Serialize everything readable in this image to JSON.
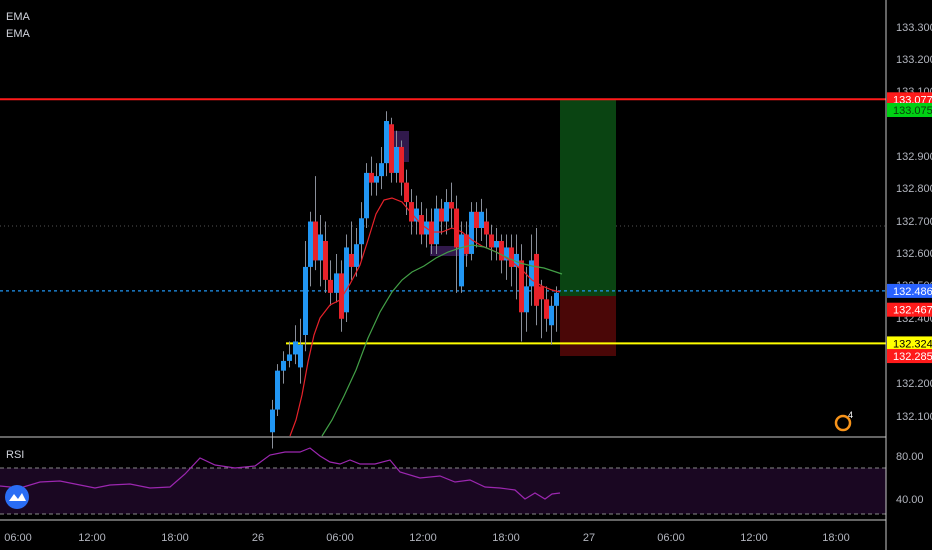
{
  "indicators": {
    "ema1": "EMA",
    "ema2": "EMA",
    "rsi": "RSI"
  },
  "price_axis": {
    "ticks": [
      "133.300",
      "133.200",
      "133.100",
      "132.900",
      "132.800",
      "132.700",
      "132.600",
      "132.500",
      "132.400",
      "132.200",
      "132.100"
    ]
  },
  "price_tags": [
    {
      "text": "133.077",
      "price": 133.077,
      "bg": "#ff1a1a",
      "fg": "#ffffff"
    },
    {
      "text": "133.075",
      "price": 133.044,
      "bg": "#00d014",
      "fg": "#0b3a0b"
    },
    {
      "text": "132.486",
      "price": 132.486,
      "bg": "#2962ff",
      "fg": "#ffffff"
    },
    {
      "text": "132.467",
      "price": 132.428,
      "bg": "#ff1a1a",
      "fg": "#ffffff"
    },
    {
      "text": "132.324",
      "price": 132.324,
      "bg": "#ffff00",
      "fg": "#000000"
    },
    {
      "text": "132.285",
      "price": 132.285,
      "bg": "#ff1a1a",
      "fg": "#ffffff"
    }
  ],
  "rsi_axis": {
    "ticks": [
      "80.00",
      "40.00"
    ]
  },
  "time_axis": {
    "ticks": [
      "06:00",
      "12:00",
      "18:00",
      "26",
      "06:00",
      "12:00",
      "18:00",
      "27",
      "06:00",
      "12:00",
      "18:00"
    ]
  },
  "alert_badge": "4",
  "colors": {
    "background": "#000000",
    "bull": "#2196f3",
    "bear": "#e8222a",
    "ema_fast": "#e8222a",
    "ema_slow": "#43a047",
    "rsi_line": "#9c27b0",
    "red_line": "#ff1a1a",
    "yellow_line": "#ffff00",
    "blue_line": "#2196f3",
    "target_zone": "#0a4412",
    "stop_zone": "#4a0707",
    "rsi_band": "#1a0722"
  }
}
